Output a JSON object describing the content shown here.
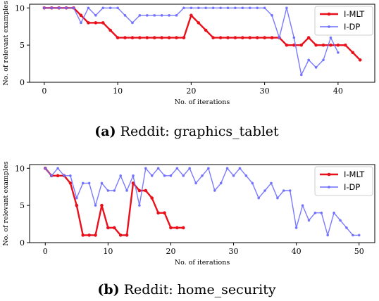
{
  "chart_data": [
    {
      "type": "line",
      "caption_label": "(a)",
      "caption_text": "Reddit: graphics_tablet",
      "xlabel": "No. of iterations",
      "ylabel": "No. of relevant examples",
      "xlim": [
        -2,
        45
      ],
      "ylim": [
        0,
        10.5
      ],
      "xticks": [
        0,
        10,
        20,
        30,
        40
      ],
      "yticks": [
        0,
        5,
        10
      ],
      "legend_position": "top-right",
      "series": [
        {
          "name": "I-MLT",
          "color": "#e8101a",
          "x": [
            0,
            1,
            2,
            3,
            4,
            5,
            6,
            7,
            8,
            9,
            10,
            11,
            12,
            13,
            14,
            15,
            16,
            17,
            18,
            19,
            20,
            21,
            22,
            23,
            24,
            25,
            26,
            27,
            28,
            29,
            30,
            31,
            32,
            33,
            34,
            35,
            36,
            37,
            38,
            39,
            40,
            41,
            42,
            43
          ],
          "values": [
            10,
            10,
            10,
            10,
            10,
            9,
            8,
            8,
            8,
            7,
            6,
            6,
            6,
            6,
            6,
            6,
            6,
            6,
            6,
            6,
            9,
            8,
            7,
            6,
            6,
            6,
            6,
            6,
            6,
            6,
            6,
            6,
            6,
            5,
            5,
            5,
            6,
            5,
            5,
            5,
            5,
            5,
            4,
            3
          ]
        },
        {
          "name": "I-DP",
          "color": "#6b6bff",
          "x": [
            0,
            1,
            2,
            3,
            4,
            5,
            6,
            7,
            8,
            9,
            10,
            11,
            12,
            13,
            14,
            15,
            16,
            17,
            18,
            19,
            20,
            21,
            22,
            23,
            24,
            25,
            26,
            27,
            28,
            29,
            30,
            31,
            32,
            33,
            34,
            35,
            36,
            37,
            38,
            39,
            40
          ],
          "values": [
            10,
            10,
            10,
            10,
            10,
            8,
            10,
            9,
            10,
            10,
            10,
            9,
            8,
            9,
            9,
            9,
            9,
            9,
            9,
            10,
            10,
            10,
            10,
            10,
            10,
            10,
            10,
            10,
            10,
            10,
            10,
            9,
            6,
            10,
            6,
            1,
            3,
            2,
            3,
            6,
            4
          ]
        }
      ]
    },
    {
      "type": "line",
      "caption_label": "(b)",
      "caption_text": "Reddit: home_security",
      "xlabel": "No. of iterations",
      "ylabel": "No. of relevant examples",
      "xlim": [
        -2.5,
        52.5
      ],
      "ylim": [
        0,
        10.5
      ],
      "xticks": [
        0,
        10,
        20,
        30,
        40,
        50
      ],
      "yticks": [
        0,
        5,
        10
      ],
      "legend_position": "top-right",
      "series": [
        {
          "name": "I-MLT",
          "color": "#e8101a",
          "x": [
            0,
            1,
            2,
            3,
            4,
            5,
            6,
            7,
            8,
            9,
            10,
            11,
            12,
            13,
            14,
            15,
            16,
            17,
            18,
            19,
            20,
            21,
            22
          ],
          "values": [
            10,
            9,
            9,
            9,
            8,
            5,
            1,
            1,
            1,
            5,
            2,
            2,
            1,
            1,
            8,
            7,
            7,
            6,
            4,
            4,
            2,
            2,
            2
          ]
        },
        {
          "name": "I-DP",
          "color": "#6b6bff",
          "x": [
            0,
            1,
            2,
            3,
            4,
            5,
            6,
            7,
            8,
            9,
            10,
            11,
            12,
            13,
            14,
            15,
            16,
            17,
            18,
            19,
            20,
            21,
            22,
            23,
            24,
            25,
            26,
            27,
            28,
            29,
            30,
            31,
            32,
            33,
            34,
            35,
            36,
            37,
            38,
            39,
            40,
            41,
            42,
            43,
            44,
            45,
            46,
            47,
            48,
            49,
            50
          ],
          "values": [
            10,
            9,
            10,
            9,
            9,
            6,
            8,
            8,
            5,
            8,
            7,
            7,
            9,
            7,
            9,
            5,
            10,
            9,
            10,
            9,
            9,
            10,
            9,
            10,
            8,
            9,
            10,
            7,
            8,
            10,
            9,
            10,
            9,
            8,
            6,
            7,
            8,
            6,
            7,
            7,
            2,
            5,
            3,
            4,
            4,
            1,
            4,
            3,
            2,
            1,
            1
          ]
        }
      ]
    }
  ]
}
